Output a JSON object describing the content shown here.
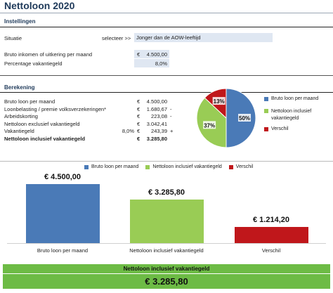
{
  "title": "Nettoloon 2020",
  "settings": {
    "heading": "Instellingen",
    "situatie_label": "Situatie",
    "select_prompt": "selecteer >>",
    "situatie_value": "Jonger dan de AOW-leeftijd",
    "bruto_label": "Bruto inkomen of uitkering per maand",
    "bruto_currency": "€",
    "bruto_value": "4.500,00",
    "vakantiegeld_label": "Percentage vakantiegeld",
    "vakantiegeld_value": "8,0%"
  },
  "calculation": {
    "heading": "Berekening",
    "rows": [
      {
        "label": "Bruto loon per maand",
        "pct": "",
        "currency": "€",
        "value": "4.500,00",
        "sign": ""
      },
      {
        "label": "Loonbelasting / premie volksverzekeringen*",
        "pct": "",
        "currency": "€",
        "value": "1.680,67",
        "sign": "-"
      },
      {
        "label": "Arbeidskorting",
        "pct": "",
        "currency": "€",
        "value": "223,08",
        "sign": "-"
      },
      {
        "label": "Nettoloon exclusief vakantiegeld",
        "pct": "",
        "currency": "€",
        "value": "3.042,41",
        "sign": ""
      },
      {
        "label": "Vakantiegeld",
        "pct": "8,0%",
        "currency": "€",
        "value": "243,39",
        "sign": "+"
      },
      {
        "label": "Nettoloon inclusief vakantiegeld",
        "pct": "",
        "currency": "€",
        "value": "3.285,80",
        "sign": ""
      }
    ]
  },
  "colors": {
    "blue": "#4a7ab7",
    "green": "#99cc55",
    "red": "#c0171b",
    "band": "#6dbb45"
  },
  "chart_data": [
    {
      "type": "pie",
      "categories": [
        "Bruto loon per maand",
        "Nettoloon inclusief vakantiegeld",
        "Verschil"
      ],
      "values": [
        50,
        37,
        13
      ],
      "data_labels": [
        "50%",
        "37%",
        "13%"
      ],
      "legend": [
        "Bruto loon per maand",
        "Nettoloon inclusief vakantiegeld",
        "Verschil"
      ],
      "legend_position": "right"
    },
    {
      "type": "bar",
      "categories": [
        "Bruto loon per maand",
        "Nettoloon inclusief vakantiegeld",
        "Verschil"
      ],
      "values": [
        4500.0,
        3285.8,
        1214.2
      ],
      "data_labels": [
        "€ 4.500,00",
        "€ 3.285,80",
        "€ 1.214,20"
      ],
      "legend": [
        "Bruto loon per maand",
        "Nettoloon inclusief vakantiegeld",
        "Verschil"
      ],
      "legend_position": "top",
      "ylim": [
        0,
        4700
      ]
    }
  ],
  "summary": {
    "label": "Nettoloon inclusief vakantiegeld",
    "value": "€ 3.285,80"
  }
}
